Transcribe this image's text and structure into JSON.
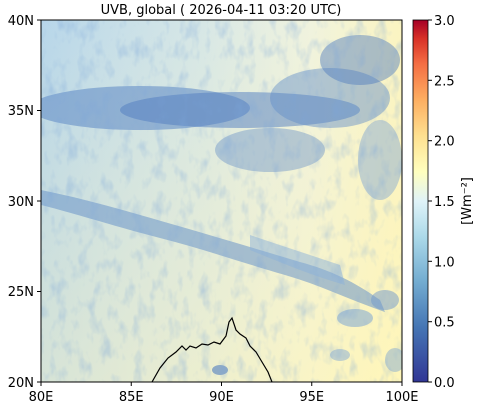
{
  "title": "UVB, global ( 2026-04-11 03:20 UTC)",
  "map": {
    "x_ticks": [
      "80E",
      "85E",
      "90E",
      "95E",
      "100E"
    ],
    "y_ticks": [
      "40N",
      "35N",
      "30N",
      "25N",
      "20N"
    ],
    "extent": {
      "lon": [
        80,
        100
      ],
      "lat": [
        20,
        40
      ]
    },
    "colormap": "RdYlBu_r",
    "colors": {
      "low": "#313695",
      "mid_low": "#74add1",
      "neutral": "#e0f3f8",
      "mid_high": "#fee090",
      "high": "#a50026",
      "coastline": "#000000"
    }
  },
  "colorbar": {
    "label": "[Wm⁻²]",
    "ticks": [
      "3.0",
      "2.5",
      "2.0",
      "1.5",
      "1.0",
      "0.5",
      "0.0"
    ],
    "range": [
      0.0,
      3.0
    ]
  }
}
